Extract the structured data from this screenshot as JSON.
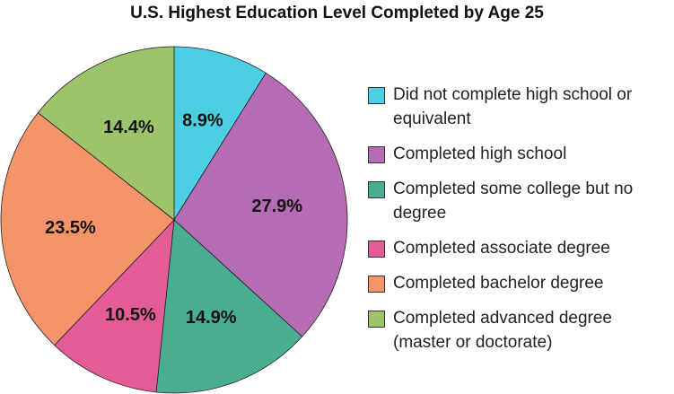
{
  "chart_data": {
    "type": "pie",
    "title": "U.S. Highest Education Level Completed by Age 25",
    "slices": [
      {
        "label": "Did not complete high school or equivalent",
        "value": 8.9,
        "display": "8.9%",
        "color": "#4dcfe3"
      },
      {
        "label": "Completed high school",
        "value": 27.9,
        "display": "27.9%",
        "color": "#b56cb4"
      },
      {
        "label": "Completed some college but no degree",
        "value": 14.9,
        "display": "14.9%",
        "color": "#48ad91"
      },
      {
        "label": "Completed associate degree",
        "value": 10.5,
        "display": "10.5%",
        "color": "#e45c97"
      },
      {
        "label": "Completed bachelor degree",
        "value": 23.5,
        "display": "23.5%",
        "color": "#f5936a"
      },
      {
        "label": "Completed advanced degree (master or doctorate)",
        "value": 14.4,
        "display": "14.4%",
        "color": "#9cc46a"
      }
    ],
    "legend_position": "right"
  }
}
